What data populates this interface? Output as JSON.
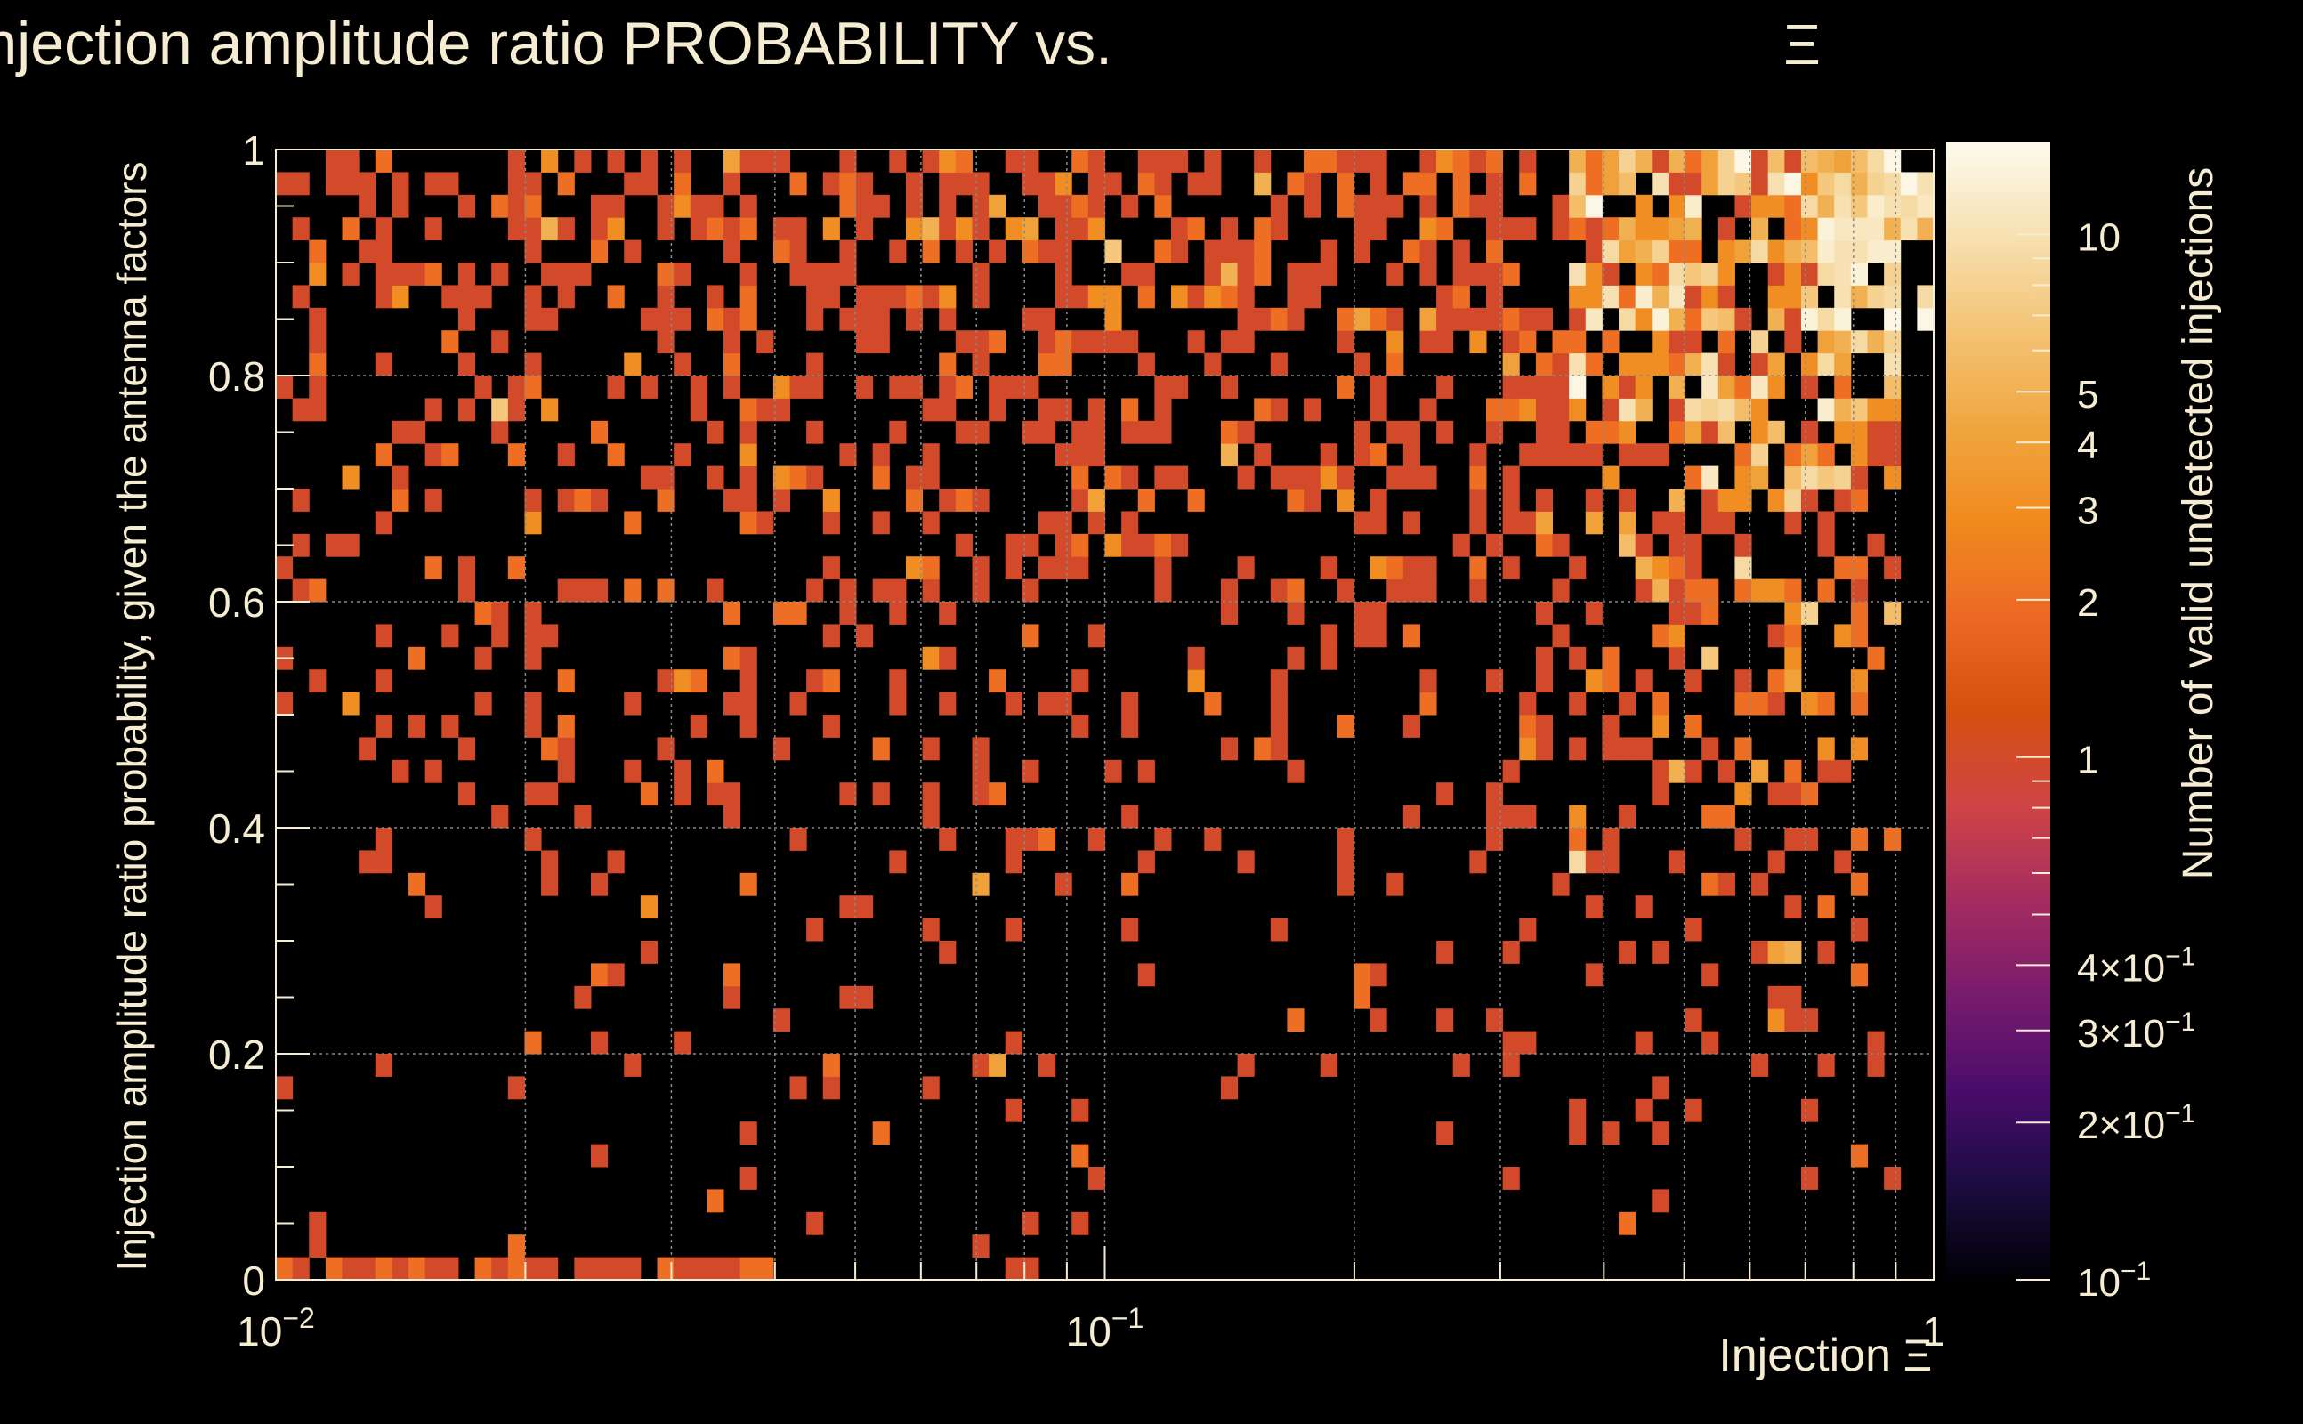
{
  "chart_data": {
    "type": "heatmap",
    "title": "Injection amplitude ratio PROBABILITY vs.",
    "title_symbol": "Ξ",
    "xlabel": "Injection",
    "xlabel_symbol": "Ξ",
    "ylabel": "Injection amplitude ratio probability, given the antenna factors",
    "zlabel": "Number of valid undetected injections",
    "x_scale": "log",
    "xlim": [
      0.01,
      1
    ],
    "ylim": [
      0,
      1
    ],
    "zlim": [
      0.1,
      15
    ],
    "x_ticks": [
      {
        "value": 0.01,
        "base": "10",
        "exp": "−2"
      },
      {
        "value": 0.1,
        "base": "10",
        "exp": "−1"
      },
      {
        "value": 1,
        "base": "1",
        "exp": ""
      }
    ],
    "y_ticks": [
      {
        "value": 0,
        "label": "0"
      },
      {
        "value": 0.2,
        "label": "0.2"
      },
      {
        "value": 0.4,
        "label": "0.4"
      },
      {
        "value": 0.6,
        "label": "0.6"
      },
      {
        "value": 0.8,
        "label": "0.8"
      },
      {
        "value": 1,
        "label": "1"
      }
    ],
    "z_ticks": [
      {
        "value": 0.1,
        "mant": "",
        "base": "10",
        "exp": "−1"
      },
      {
        "value": 0.2,
        "mant": "2×",
        "base": "10",
        "exp": "−1"
      },
      {
        "value": 0.3,
        "mant": "3×",
        "base": "10",
        "exp": "−1"
      },
      {
        "value": 0.4,
        "mant": "4×",
        "base": "10",
        "exp": "−1"
      },
      {
        "value": 1,
        "mant": "",
        "base": "1",
        "exp": ""
      },
      {
        "value": 2,
        "mant": "",
        "base": "2",
        "exp": ""
      },
      {
        "value": 3,
        "mant": "",
        "base": "3",
        "exp": ""
      },
      {
        "value": 4,
        "mant": "",
        "base": "4",
        "exp": ""
      },
      {
        "value": 5,
        "mant": "",
        "base": "5",
        "exp": ""
      },
      {
        "value": 10,
        "mant": "",
        "base": "10",
        "exp": ""
      }
    ],
    "grid": true,
    "colormap": [
      "#000004",
      "#1b0c41",
      "#4a0c6b",
      "#781c6d",
      "#a52c60",
      "#cf4446",
      "#d4500e",
      "#ed6925",
      "#f08a1e",
      "#f0a640",
      "#f4c374",
      "#f7e0b0",
      "#fcfbee"
    ],
    "bins": {
      "nx": 100,
      "ny": 50,
      "generator": "seeded pseudo-random density reproducing the visible distribution: sparse at low x and low y, dense and higher counts toward top-right",
      "seed": 12345
    },
    "colors": {
      "background": "#000000",
      "text": "#f5ecd2",
      "grid": "#8a8a8a"
    }
  }
}
